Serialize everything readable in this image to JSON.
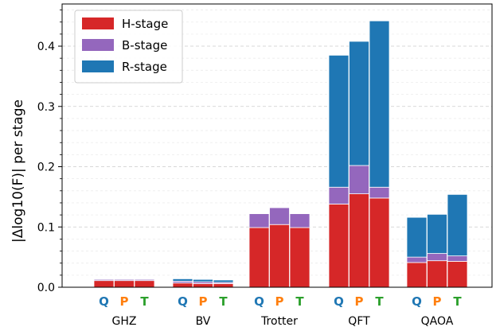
{
  "chart_data": {
    "type": "bar",
    "stacked": true,
    "ylabel": "|Δlog10(F)| per stage",
    "ylim": [
      0,
      0.47
    ],
    "yticks": [
      0.0,
      0.1,
      0.2,
      0.3,
      0.4
    ],
    "ytick_labels": [
      "0.0",
      "0.1",
      "0.2",
      "0.3",
      "0.4"
    ],
    "grid": "horizontal-dashed",
    "legend_position": "top-left",
    "categories": [
      "GHZ",
      "BV",
      "Trotter",
      "QFT",
      "QAOA"
    ],
    "variants": [
      "Q",
      "P",
      "T"
    ],
    "variant_colors": [
      "#1f77b4",
      "#ff7f0e",
      "#2ca02c"
    ],
    "series": [
      {
        "name": "H-stage",
        "color": "#d62728",
        "values": [
          [
            0.011,
            0.011,
            0.011
          ],
          [
            0.007,
            0.006,
            0.006
          ],
          [
            0.099,
            0.104,
            0.099
          ],
          [
            0.138,
            0.155,
            0.148
          ],
          [
            0.041,
            0.044,
            0.043
          ]
        ]
      },
      {
        "name": "B-stage",
        "color": "#9467bd",
        "values": [
          [
            0.002,
            0.002,
            0.002
          ],
          [
            0.003,
            0.003,
            0.002
          ],
          [
            0.023,
            0.028,
            0.023
          ],
          [
            0.028,
            0.047,
            0.018
          ],
          [
            0.009,
            0.012,
            0.009
          ]
        ]
      },
      {
        "name": "R-stage",
        "color": "#1f77b4",
        "values": [
          [
            0.001,
            0.001,
            0.001
          ],
          [
            0.004,
            0.004,
            0.004
          ],
          [
            0.0,
            0.0,
            0.0
          ],
          [
            0.219,
            0.206,
            0.276
          ],
          [
            0.066,
            0.065,
            0.102
          ]
        ]
      }
    ]
  }
}
